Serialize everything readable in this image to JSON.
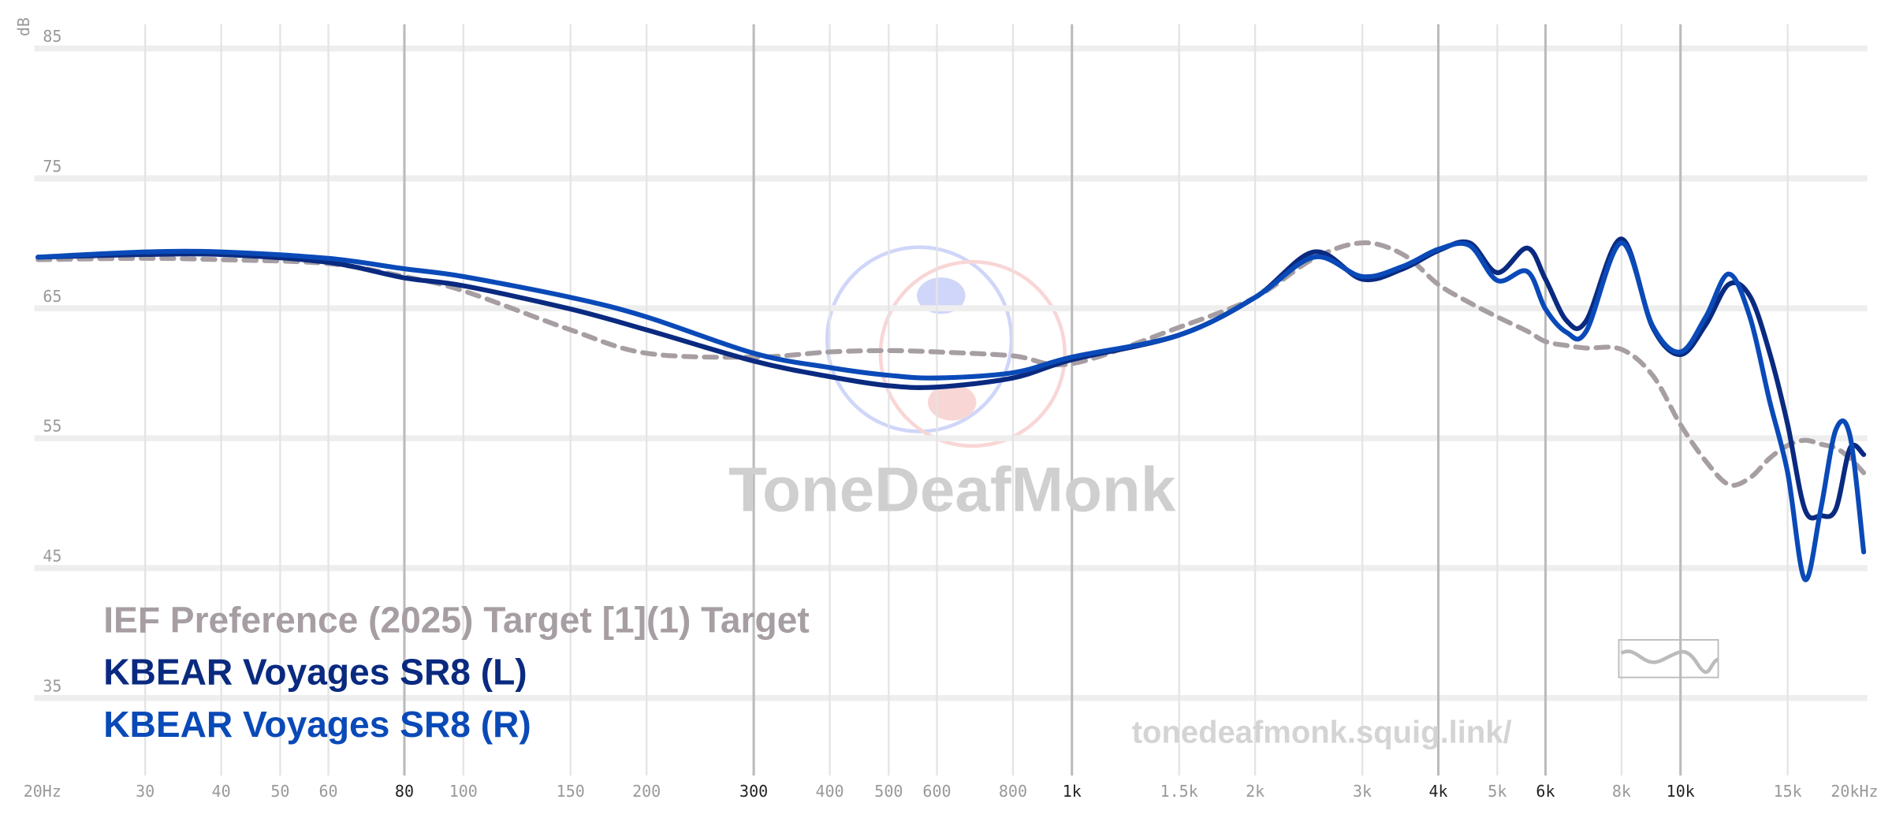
{
  "chart_data": {
    "type": "line",
    "y_label": "dB",
    "watermark": "ToneDeafMonk",
    "url": "tonedeafmonk.squig.link/",
    "log_x": true,
    "grid": true,
    "x": [
      20,
      30,
      40,
      60,
      80,
      100,
      150,
      200,
      300,
      400,
      500,
      600,
      800,
      1000,
      1500,
      2000,
      2500,
      3000,
      3500,
      4000,
      4500,
      5000,
      5600,
      6000,
      6500,
      7000,
      8000,
      9000,
      10000,
      11000,
      12000,
      13000,
      14000,
      15000,
      16000,
      17000,
      18000,
      19000,
      20000
    ],
    "xlim": [
      20,
      20000
    ],
    "ylim": [
      28,
      86
    ],
    "xticks": [
      {
        "value": 20,
        "label": "20Hz"
      },
      30,
      40,
      50,
      60,
      {
        "value": 80,
        "label": "80",
        "major": true
      },
      100,
      150,
      200,
      {
        "value": 300,
        "label": "300",
        "major": true
      },
      400,
      500,
      600,
      800,
      {
        "value": 1000,
        "label": "1k",
        "major": true
      },
      {
        "value": 1500,
        "label": "1.5k"
      },
      {
        "value": 2000,
        "label": "2k"
      },
      {
        "value": 3000,
        "label": "3k"
      },
      {
        "value": 4000,
        "label": "4k",
        "major": true
      },
      {
        "value": 5000,
        "label": "5k"
      },
      {
        "value": 6000,
        "label": "6k",
        "major": true
      },
      {
        "value": 8000,
        "label": "8k"
      },
      {
        "value": 10000,
        "label": "10k",
        "major": true
      },
      {
        "value": 15000,
        "label": "15k"
      },
      {
        "value": 20000,
        "label": "20kHz"
      }
    ],
    "yticks": [
      35,
      45,
      55,
      65,
      75,
      85
    ],
    "series": [
      {
        "name": "IEF Preference (2025) Target [1](1) Target",
        "color": "#a69ea3",
        "dashed": true,
        "values": [
          67.9,
          68.0,
          67.9,
          67.6,
          66.6,
          65.5,
          62.5,
          60.7,
          60.4,
          60.8,
          60.9,
          60.8,
          60.5,
          59.9,
          62.7,
          65.0,
          68.0,
          69.2,
          68.3,
          66.0,
          64.6,
          63.5,
          62.4,
          61.6,
          61.3,
          61.1,
          61.0,
          59.0,
          55.2,
          52.4,
          50.6,
          51.1,
          52.6,
          53.6,
          54.0,
          53.7,
          53.4,
          52.6,
          51.5
        ]
      },
      {
        "name": "KBEAR Voyages SR8 (L)",
        "color": "#0a2a80",
        "values": [
          68.1,
          68.3,
          68.3,
          67.7,
          66.5,
          65.9,
          64.1,
          62.5,
          60.1,
          58.9,
          58.2,
          58.1,
          58.8,
          60.2,
          62.1,
          65.0,
          68.5,
          66.4,
          67.2,
          68.6,
          69.2,
          66.9,
          68.8,
          66.4,
          63.2,
          63.2,
          69.5,
          62.7,
          60.6,
          62.9,
          66.0,
          65.1,
          60.8,
          55.2,
          48.7,
          48.2,
          48.7,
          53.4,
          52.9
        ]
      },
      {
        "name": "KBEAR Voyages SR8 (R)",
        "color": "#0a4ab8",
        "values": [
          68.1,
          68.5,
          68.5,
          68.0,
          67.2,
          66.6,
          65.0,
          63.5,
          60.7,
          59.6,
          59.0,
          58.8,
          59.2,
          60.4,
          62.1,
          65.0,
          68.1,
          66.6,
          67.4,
          68.7,
          69.0,
          66.3,
          67.0,
          64.1,
          62.3,
          62.4,
          69.2,
          62.8,
          60.8,
          63.5,
          66.8,
          63.5,
          57.1,
          51.5,
          43.3,
          48.7,
          54.8,
          54.3,
          45.4
        ]
      }
    ]
  }
}
